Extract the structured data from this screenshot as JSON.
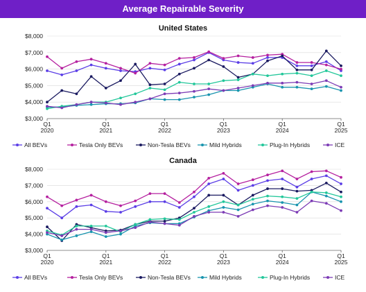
{
  "title": "Average Repairable Severity",
  "chart_data": [
    {
      "type": "line",
      "title": "United States",
      "x": [
        "Q1 2020",
        "Q2 2020",
        "Q3 2020",
        "Q4 2020",
        "Q1 2021",
        "Q2 2021",
        "Q3 2021",
        "Q4 2021",
        "Q1 2022",
        "Q2 2022",
        "Q3 2022",
        "Q4 2022",
        "Q1 2023",
        "Q2 2023",
        "Q3 2023",
        "Q4 2023",
        "Q1 2024",
        "Q2 2024",
        "Q3 2024",
        "Q4 2024",
        "Q1 2025"
      ],
      "xticks": [
        {
          "q": "Q1",
          "y": "2020"
        },
        {
          "q": "Q1",
          "y": "2021"
        },
        {
          "q": "Q1",
          "y": "2022"
        },
        {
          "q": "Q1",
          "y": "2023"
        },
        {
          "q": "Q1",
          "y": "2024"
        },
        {
          "q": "Q1",
          "y": "2025"
        }
      ],
      "yticks": [
        "$3,000",
        "$4,000",
        "$5,000",
        "$6,000",
        "$7,000",
        "$8,000"
      ],
      "ylim": [
        3000,
        8000
      ],
      "legend_position": "bottom",
      "series": [
        {
          "name": "All BEVs",
          "color": "#5b3ee6",
          "values": [
            5900,
            5650,
            5900,
            6250,
            6050,
            5900,
            5850,
            6050,
            5950,
            6300,
            6550,
            7000,
            6550,
            6400,
            6350,
            6700,
            6700,
            6200,
            6200,
            6450,
            5900
          ]
        },
        {
          "name": "Tesla Only BEVs",
          "color": "#b5209f",
          "values": [
            6750,
            6050,
            6450,
            6600,
            6350,
            6050,
            5750,
            6350,
            6250,
            6650,
            6700,
            7050,
            6650,
            6800,
            6700,
            6850,
            6900,
            6400,
            6400,
            6250,
            6000
          ]
        },
        {
          "name": "Non-Tesla BEVs",
          "color": "#1a1a60",
          "values": [
            4000,
            4700,
            4500,
            5550,
            4850,
            5300,
            6300,
            5050,
            5100,
            5700,
            6050,
            6550,
            6150,
            5500,
            5700,
            6500,
            6800,
            5950,
            5950,
            7100,
            6200
          ]
        },
        {
          "name": "Mild Hybrids",
          "color": "#1894ae",
          "values": [
            3700,
            3700,
            3800,
            3850,
            3900,
            3900,
            3950,
            4200,
            4150,
            4150,
            4300,
            4450,
            4700,
            4700,
            4900,
            5100,
            4900,
            4900,
            4800,
            4950,
            4700
          ]
        },
        {
          "name": "Plug-In Hybrids",
          "color": "#22c79a",
          "values": [
            3600,
            3750,
            3850,
            4000,
            4000,
            4250,
            4500,
            4850,
            4750,
            5200,
            5100,
            5100,
            5300,
            5350,
            5700,
            5600,
            5700,
            5750,
            5600,
            5900,
            5600
          ]
        },
        {
          "name": "ICE",
          "color": "#7c3bb5",
          "values": [
            3750,
            3650,
            3850,
            4000,
            3950,
            3850,
            4000,
            4200,
            4500,
            4550,
            4650,
            4800,
            4700,
            4850,
            5000,
            5150,
            5150,
            5200,
            5100,
            5300,
            4900
          ]
        }
      ]
    },
    {
      "type": "line",
      "title": "Canada",
      "x": [
        "Q1 2020",
        "Q2 2020",
        "Q3 2020",
        "Q4 2020",
        "Q1 2021",
        "Q2 2021",
        "Q3 2021",
        "Q4 2021",
        "Q1 2022",
        "Q2 2022",
        "Q3 2022",
        "Q4 2022",
        "Q1 2023",
        "Q2 2023",
        "Q3 2023",
        "Q4 2023",
        "Q1 2024",
        "Q2 2024",
        "Q3 2024",
        "Q4 2024",
        "Q1 2025"
      ],
      "xticks": [
        {
          "q": "Q1",
          "y": "2020"
        },
        {
          "q": "Q1",
          "y": "2021"
        },
        {
          "q": "Q1",
          "y": "2022"
        },
        {
          "q": "Q1",
          "y": "2023"
        },
        {
          "q": "Q1",
          "y": "2024"
        },
        {
          "q": "Q1",
          "y": "2025"
        }
      ],
      "yticks": [
        "$3,000",
        "$4,000",
        "$5,000",
        "$6,000",
        "$7,000",
        "$8,000"
      ],
      "ylim": [
        3000,
        8000
      ],
      "legend_position": "bottom",
      "series": [
        {
          "name": "All BEVs",
          "color": "#5b3ee6",
          "values": [
            5600,
            5000,
            5700,
            5800,
            5400,
            5350,
            5700,
            6000,
            6000,
            5650,
            6300,
            7100,
            7400,
            6700,
            7000,
            7300,
            7400,
            6900,
            7400,
            7600,
            7100
          ]
        },
        {
          "name": "Tesla Only BEVs",
          "color": "#b5209f",
          "values": [
            6300,
            5750,
            6100,
            6400,
            6000,
            5750,
            6050,
            6500,
            6500,
            5950,
            6600,
            7450,
            7750,
            7100,
            7350,
            7650,
            7900,
            7400,
            7850,
            7900,
            7500
          ]
        },
        {
          "name": "Non-Tesla BEVs",
          "color": "#1a1a60",
          "values": [
            4450,
            3600,
            4600,
            4400,
            4200,
            4250,
            4600,
            4800,
            4800,
            5000,
            5600,
            6400,
            6400,
            5800,
            6400,
            6800,
            6800,
            6650,
            6700,
            7150,
            6600
          ]
        },
        {
          "name": "Mild Hybrids",
          "color": "#1894ae",
          "values": [
            4000,
            3650,
            3900,
            4150,
            3850,
            4000,
            4500,
            4700,
            4650,
            4650,
            5050,
            5450,
            5650,
            5500,
            5850,
            6050,
            5950,
            5800,
            6600,
            6350,
            6000
          ]
        },
        {
          "name": "Plug-In Hybrids",
          "color": "#22c79a",
          "values": [
            4200,
            3950,
            4500,
            4500,
            4500,
            4150,
            4600,
            4900,
            4950,
            4900,
            5350,
            5700,
            6000,
            5800,
            6150,
            6350,
            6300,
            6200,
            6600,
            6550,
            6300
          ]
        },
        {
          "name": "ICE",
          "color": "#7c3bb5",
          "values": [
            4100,
            3900,
            4300,
            4300,
            4100,
            4200,
            4400,
            4750,
            4650,
            4550,
            5100,
            5350,
            5350,
            5100,
            5500,
            5750,
            5650,
            5350,
            6050,
            5900,
            5450
          ]
        }
      ]
    }
  ]
}
